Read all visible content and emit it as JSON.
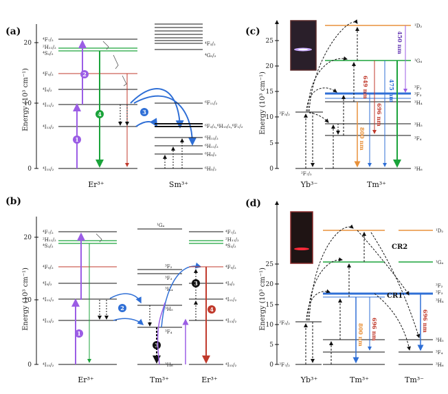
{
  "panels": {
    "a": {
      "label": "(a)",
      "ylabel": "Energy (10³ cm⁻¹)",
      "ticks": [
        "0",
        "10",
        "20"
      ],
      "ions": [
        "Er³⁺",
        "Sm³⁺"
      ],
      "er_levels": [
        "⁴F₇/₂",
        "²H₁₁/₂",
        "⁴S₃/₂",
        "⁴F₉/₂",
        "⁴I₉/₂",
        "⁴I₁₁/₂",
        "⁴I₁₃/₂",
        "⁴I₁₅/₂"
      ],
      "sm_levels": [
        "⁴F₃/₂",
        "⁴G₅/₂",
        "⁶F₁₁/₂",
        "⁶F₃/₂,⁶H₁₅/₂,⁶F₁/₂",
        "⁶H₁₃/₂",
        "⁶H₁₁/₂",
        "⁶H₉/₂",
        "⁶H₅/₂"
      ],
      "steps": [
        "1",
        "2",
        "3",
        "4"
      ]
    },
    "b": {
      "label": "(b)",
      "ylabel": "Energy (10³ cm⁻¹)",
      "ticks": [
        "0",
        "10",
        "20"
      ],
      "ions": [
        "Er³⁺",
        "Tm³⁺",
        "Er³⁺"
      ],
      "er_levels": [
        "⁴F₇/₂",
        "²H₁₁/₂",
        "⁴S₃/₂",
        "⁴F₉/₂",
        "⁴I₉/₂",
        "⁴I₁₁/₂",
        "⁴I₁₃/₂",
        "⁴I₁₅/₂"
      ],
      "tm_levels": [
        "¹G₄",
        "³F₂",
        "³F₃",
        "³H₄",
        "³H₅",
        "³F₄",
        "³H₆"
      ],
      "steps": [
        "1",
        "2",
        "3",
        "3",
        "4"
      ]
    },
    "c": {
      "label": "(c)",
      "ylabel": "Energy (10³ cm⁻¹)",
      "ticks": [
        "0",
        "5",
        "10",
        "15",
        "20",
        "25"
      ],
      "ions": [
        "Yb³⁻",
        "Tm³⁺"
      ],
      "yb_levels": [
        "²F₅/₂",
        "²F₇/₂"
      ],
      "tm_levels": [
        "¹D₂",
        "¹G₄",
        "³F₂",
        "³F₃",
        "³H₄",
        "³H₅",
        "³F₄",
        "³H₆"
      ],
      "emissions": [
        "450 nm",
        "475 nm",
        "649 nm",
        "696 nm",
        "800 nm"
      ]
    },
    "d": {
      "label": "(d)",
      "ylabel": "Energy (10³ cm⁻¹)",
      "ticks": [
        "0",
        "5",
        "10",
        "15",
        "20",
        "25"
      ],
      "ions": [
        "Yb³⁺",
        "Tm³⁺",
        "Tm³⁻"
      ],
      "yb_levels": [
        "²F₅/₂",
        "²F₇/₂"
      ],
      "tm_levels": [
        "¹D₂",
        "¹G₄",
        "³F₂",
        "³F₃",
        "³H₄",
        "³H₅",
        "³F₄",
        "³H₆"
      ],
      "cross_relax": [
        "CR2",
        "CR1"
      ],
      "emissions": [
        "800 nm",
        "696 nm",
        "696 nm"
      ]
    }
  },
  "colors": {
    "violet": "#9b5de5",
    "green": "#1aa33a",
    "red": "#c0392b",
    "blue": "#2f6fd6",
    "orange": "#e8913a",
    "black": "#111111"
  }
}
